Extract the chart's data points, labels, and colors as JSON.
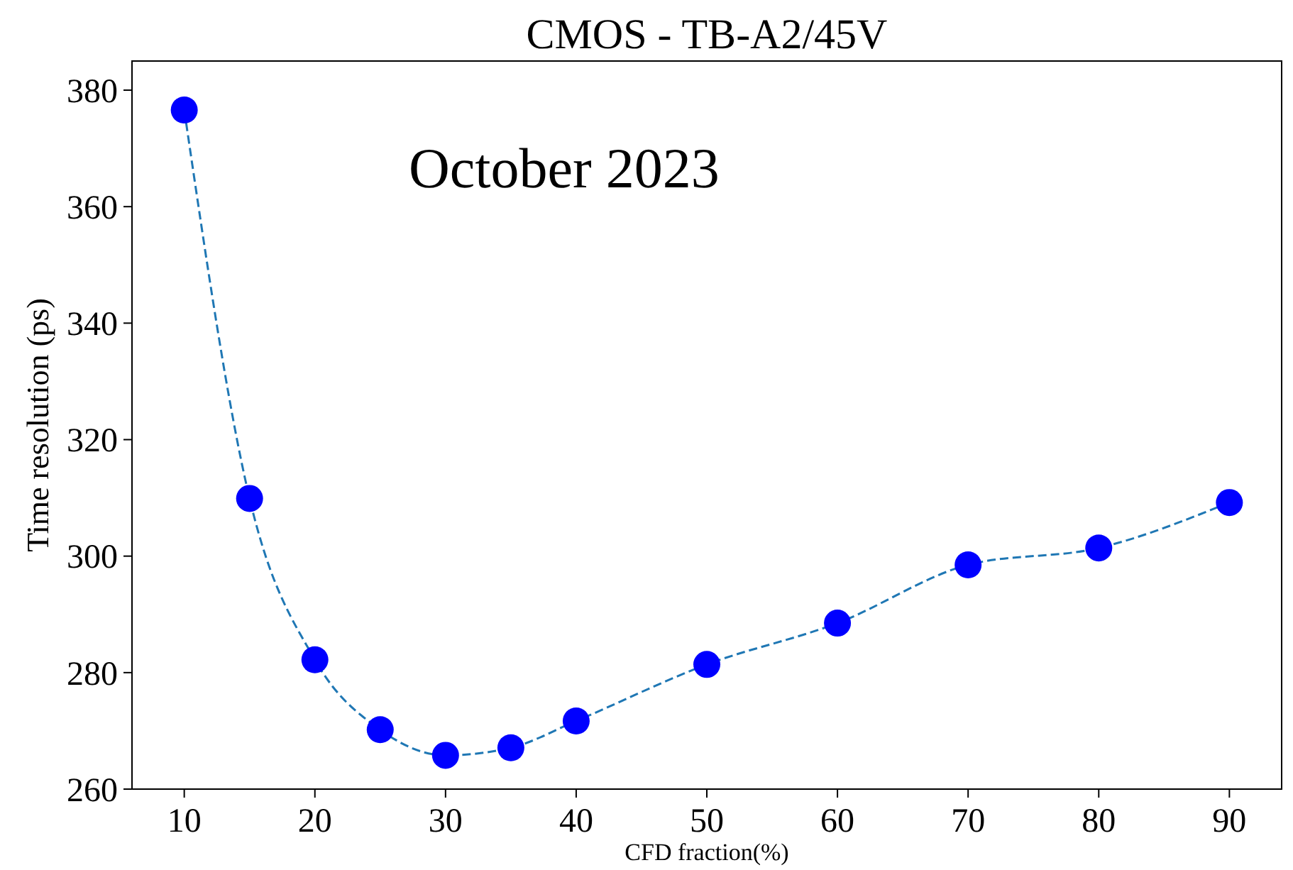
{
  "chart_data": {
    "type": "scatter",
    "title": "CMOS - TB-A2/45V",
    "xlabel": "CFD fraction(%)",
    "ylabel": "Time resolution (ps)",
    "annotations": [
      "October 2023"
    ],
    "x": [
      10,
      15,
      20,
      25,
      30,
      35,
      40,
      50,
      60,
      70,
      80,
      90
    ],
    "series": [
      {
        "type": "line",
        "color": "#1f77b4",
        "line_style": "dashed",
        "marker": "none",
        "values": [
          376.6,
          309.9,
          282.2,
          270.2,
          265.8,
          267.1,
          271.7,
          281.4,
          288.5,
          298.5,
          301.4,
          309.2
        ]
      },
      {
        "color": "#0000ff",
        "marker": "circle",
        "values": [
          376.6,
          309.9,
          282.2,
          270.2,
          265.8,
          267.1,
          271.7,
          281.4,
          288.5,
          298.5,
          301.4,
          309.2
        ]
      }
    ],
    "xlim": [
      6,
      94
    ],
    "xticks": [
      10,
      20,
      30,
      40,
      50,
      60,
      70,
      80,
      90
    ],
    "ylim": [
      260,
      385
    ],
    "yticks": [
      260,
      280,
      300,
      320,
      340,
      360,
      380
    ],
    "grid": false
  }
}
